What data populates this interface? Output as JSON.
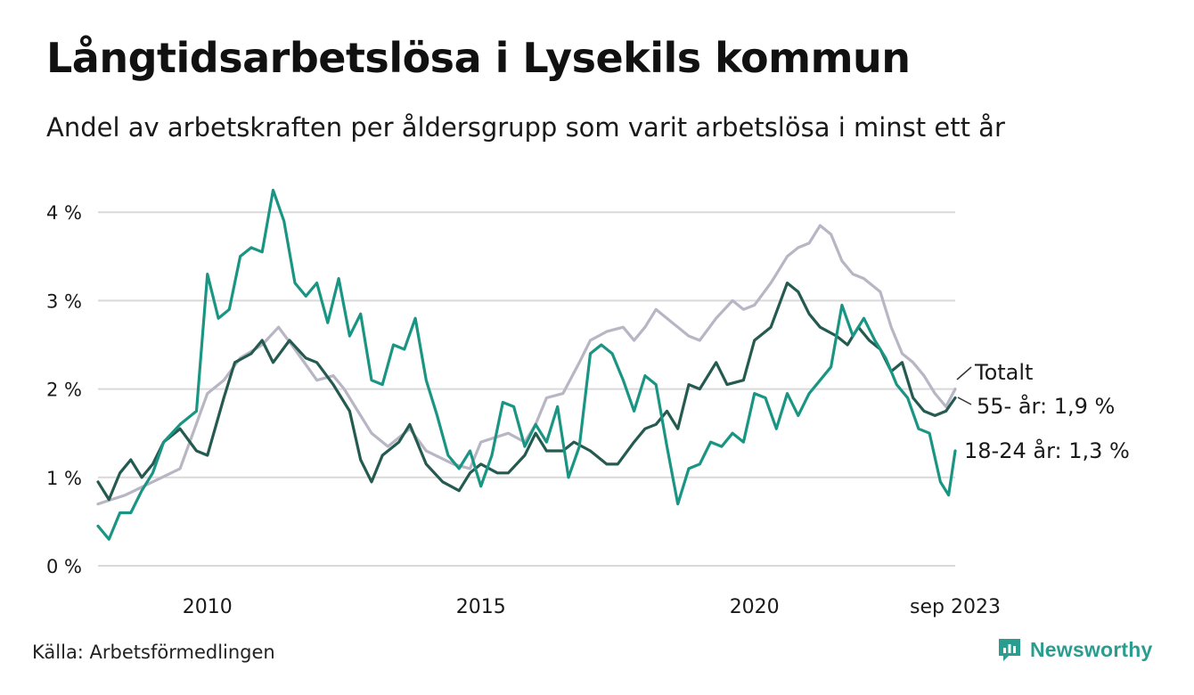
{
  "header": {
    "title": "Långtidsarbetslösa i Lysekils kommun",
    "subtitle": "Andel av arbetskraften per åldersgrupp som varit arbetslösa i minst ett år"
  },
  "footer": {
    "source": "Källa: Arbetsförmedlingen",
    "brand": "Newsworthy"
  },
  "colors": {
    "total": "#b8b5c4",
    "age55": "#255a50",
    "age18_24": "#1a9583",
    "grid": "#d9d9d9",
    "text": "#1a1a1a",
    "brand": "#2a9d8f"
  },
  "chart_data": {
    "type": "line",
    "title": "Långtidsarbetslösa i Lysekils kommun",
    "subtitle": "Andel av arbetskraften per åldersgrupp som varit arbetslösa i minst ett år",
    "xlabel": "",
    "ylabel": "",
    "x_range": [
      2008.0,
      2023.67
    ],
    "ylim": [
      0,
      4.3
    ],
    "yticks": [
      0,
      1,
      2,
      3,
      4
    ],
    "ytick_labels": [
      "0 %",
      "1 %",
      "2 %",
      "3 %",
      "4 %"
    ],
    "xticks": [
      2010,
      2015,
      2020,
      2023.67
    ],
    "xtick_labels": [
      "2010",
      "2015",
      "2020",
      "sep 2023"
    ],
    "grid": true,
    "series": [
      {
        "name": "Totalt",
        "label": "Totalt",
        "color_key": "total",
        "points": [
          [
            2008.0,
            0.7
          ],
          [
            2008.5,
            0.8
          ],
          [
            2009.0,
            0.95
          ],
          [
            2009.5,
            1.1
          ],
          [
            2010.0,
            1.95
          ],
          [
            2010.3,
            2.1
          ],
          [
            2010.6,
            2.35
          ],
          [
            2011.0,
            2.5
          ],
          [
            2011.3,
            2.7
          ],
          [
            2011.6,
            2.45
          ],
          [
            2012.0,
            2.1
          ],
          [
            2012.3,
            2.15
          ],
          [
            2012.5,
            2.0
          ],
          [
            2012.8,
            1.7
          ],
          [
            2013.0,
            1.5
          ],
          [
            2013.3,
            1.35
          ],
          [
            2013.7,
            1.55
          ],
          [
            2014.0,
            1.3
          ],
          [
            2014.5,
            1.15
          ],
          [
            2014.8,
            1.1
          ],
          [
            2015.0,
            1.4
          ],
          [
            2015.5,
            1.5
          ],
          [
            2015.8,
            1.4
          ],
          [
            2016.0,
            1.6
          ],
          [
            2016.2,
            1.9
          ],
          [
            2016.5,
            1.95
          ],
          [
            2016.8,
            2.3
          ],
          [
            2017.0,
            2.55
          ],
          [
            2017.3,
            2.65
          ],
          [
            2017.6,
            2.7
          ],
          [
            2017.8,
            2.55
          ],
          [
            2018.0,
            2.7
          ],
          [
            2018.2,
            2.9
          ],
          [
            2018.5,
            2.75
          ],
          [
            2018.8,
            2.6
          ],
          [
            2019.0,
            2.55
          ],
          [
            2019.3,
            2.8
          ],
          [
            2019.6,
            3.0
          ],
          [
            2019.8,
            2.9
          ],
          [
            2020.0,
            2.95
          ],
          [
            2020.3,
            3.2
          ],
          [
            2020.6,
            3.5
          ],
          [
            2020.8,
            3.6
          ],
          [
            2021.0,
            3.65
          ],
          [
            2021.2,
            3.85
          ],
          [
            2021.4,
            3.75
          ],
          [
            2021.6,
            3.45
          ],
          [
            2021.8,
            3.3
          ],
          [
            2022.0,
            3.25
          ],
          [
            2022.3,
            3.1
          ],
          [
            2022.5,
            2.7
          ],
          [
            2022.7,
            2.4
          ],
          [
            2022.9,
            2.3
          ],
          [
            2023.1,
            2.15
          ],
          [
            2023.3,
            1.95
          ],
          [
            2023.5,
            1.8
          ],
          [
            2023.67,
            2.0
          ]
        ]
      },
      {
        "name": "55- år",
        "label": "55- år: 1,9 %",
        "last_value": 1.9,
        "color_key": "age55",
        "points": [
          [
            2008.0,
            0.95
          ],
          [
            2008.2,
            0.75
          ],
          [
            2008.4,
            1.05
          ],
          [
            2008.6,
            1.2
          ],
          [
            2008.8,
            1.0
          ],
          [
            2009.0,
            1.15
          ],
          [
            2009.2,
            1.4
          ],
          [
            2009.5,
            1.55
          ],
          [
            2009.8,
            1.3
          ],
          [
            2010.0,
            1.25
          ],
          [
            2010.3,
            1.9
          ],
          [
            2010.5,
            2.3
          ],
          [
            2010.8,
            2.4
          ],
          [
            2011.0,
            2.55
          ],
          [
            2011.2,
            2.3
          ],
          [
            2011.5,
            2.55
          ],
          [
            2011.8,
            2.35
          ],
          [
            2012.0,
            2.3
          ],
          [
            2012.3,
            2.05
          ],
          [
            2012.6,
            1.75
          ],
          [
            2012.8,
            1.2
          ],
          [
            2013.0,
            0.95
          ],
          [
            2013.2,
            1.25
          ],
          [
            2013.5,
            1.4
          ],
          [
            2013.7,
            1.6
          ],
          [
            2014.0,
            1.15
          ],
          [
            2014.3,
            0.95
          ],
          [
            2014.6,
            0.85
          ],
          [
            2014.8,
            1.05
          ],
          [
            2015.0,
            1.15
          ],
          [
            2015.3,
            1.05
          ],
          [
            2015.5,
            1.05
          ],
          [
            2015.8,
            1.25
          ],
          [
            2016.0,
            1.5
          ],
          [
            2016.2,
            1.3
          ],
          [
            2016.5,
            1.3
          ],
          [
            2016.7,
            1.4
          ],
          [
            2017.0,
            1.3
          ],
          [
            2017.3,
            1.15
          ],
          [
            2017.5,
            1.15
          ],
          [
            2017.8,
            1.4
          ],
          [
            2018.0,
            1.55
          ],
          [
            2018.2,
            1.6
          ],
          [
            2018.4,
            1.75
          ],
          [
            2018.6,
            1.55
          ],
          [
            2018.8,
            2.05
          ],
          [
            2019.0,
            2.0
          ],
          [
            2019.3,
            2.3
          ],
          [
            2019.5,
            2.05
          ],
          [
            2019.8,
            2.1
          ],
          [
            2020.0,
            2.55
          ],
          [
            2020.3,
            2.7
          ],
          [
            2020.6,
            3.2
          ],
          [
            2020.8,
            3.1
          ],
          [
            2021.0,
            2.85
          ],
          [
            2021.2,
            2.7
          ],
          [
            2021.5,
            2.6
          ],
          [
            2021.7,
            2.5
          ],
          [
            2021.9,
            2.7
          ],
          [
            2022.1,
            2.55
          ],
          [
            2022.3,
            2.45
          ],
          [
            2022.5,
            2.2
          ],
          [
            2022.7,
            2.3
          ],
          [
            2022.9,
            1.9
          ],
          [
            2023.1,
            1.75
          ],
          [
            2023.3,
            1.7
          ],
          [
            2023.5,
            1.75
          ],
          [
            2023.67,
            1.9
          ]
        ]
      },
      {
        "name": "18-24 år",
        "label": "18-24 år: 1,3 %",
        "last_value": 1.3,
        "color_key": "age18_24",
        "points": [
          [
            2008.0,
            0.45
          ],
          [
            2008.2,
            0.3
          ],
          [
            2008.4,
            0.6
          ],
          [
            2008.6,
            0.6
          ],
          [
            2008.8,
            0.85
          ],
          [
            2009.0,
            1.05
          ],
          [
            2009.2,
            1.4
          ],
          [
            2009.5,
            1.6
          ],
          [
            2009.8,
            1.75
          ],
          [
            2010.0,
            3.3
          ],
          [
            2010.2,
            2.8
          ],
          [
            2010.4,
            2.9
          ],
          [
            2010.6,
            3.5
          ],
          [
            2010.8,
            3.6
          ],
          [
            2011.0,
            3.55
          ],
          [
            2011.2,
            4.25
          ],
          [
            2011.4,
            3.9
          ],
          [
            2011.6,
            3.2
          ],
          [
            2011.8,
            3.05
          ],
          [
            2012.0,
            3.2
          ],
          [
            2012.2,
            2.75
          ],
          [
            2012.4,
            3.25
          ],
          [
            2012.6,
            2.6
          ],
          [
            2012.8,
            2.85
          ],
          [
            2013.0,
            2.1
          ],
          [
            2013.2,
            2.05
          ],
          [
            2013.4,
            2.5
          ],
          [
            2013.6,
            2.45
          ],
          [
            2013.8,
            2.8
          ],
          [
            2014.0,
            2.1
          ],
          [
            2014.2,
            1.7
          ],
          [
            2014.4,
            1.25
          ],
          [
            2014.6,
            1.1
          ],
          [
            2014.8,
            1.3
          ],
          [
            2015.0,
            0.9
          ],
          [
            2015.2,
            1.25
          ],
          [
            2015.4,
            1.85
          ],
          [
            2015.6,
            1.8
          ],
          [
            2015.8,
            1.35
          ],
          [
            2016.0,
            1.6
          ],
          [
            2016.2,
            1.4
          ],
          [
            2016.4,
            1.8
          ],
          [
            2016.6,
            1.0
          ],
          [
            2016.8,
            1.35
          ],
          [
            2017.0,
            2.4
          ],
          [
            2017.2,
            2.5
          ],
          [
            2017.4,
            2.4
          ],
          [
            2017.6,
            2.1
          ],
          [
            2017.8,
            1.75
          ],
          [
            2018.0,
            2.15
          ],
          [
            2018.2,
            2.05
          ],
          [
            2018.4,
            1.35
          ],
          [
            2018.6,
            0.7
          ],
          [
            2018.8,
            1.1
          ],
          [
            2019.0,
            1.15
          ],
          [
            2019.2,
            1.4
          ],
          [
            2019.4,
            1.35
          ],
          [
            2019.6,
            1.5
          ],
          [
            2019.8,
            1.4
          ],
          [
            2020.0,
            1.95
          ],
          [
            2020.2,
            1.9
          ],
          [
            2020.4,
            1.55
          ],
          [
            2020.6,
            1.95
          ],
          [
            2020.8,
            1.7
          ],
          [
            2021.0,
            1.95
          ],
          [
            2021.2,
            2.1
          ],
          [
            2021.4,
            2.25
          ],
          [
            2021.6,
            2.95
          ],
          [
            2021.8,
            2.6
          ],
          [
            2022.0,
            2.8
          ],
          [
            2022.2,
            2.55
          ],
          [
            2022.4,
            2.35
          ],
          [
            2022.6,
            2.05
          ],
          [
            2022.8,
            1.9
          ],
          [
            2023.0,
            1.55
          ],
          [
            2023.2,
            1.5
          ],
          [
            2023.4,
            0.95
          ],
          [
            2023.55,
            0.8
          ],
          [
            2023.67,
            1.3
          ]
        ]
      }
    ]
  }
}
